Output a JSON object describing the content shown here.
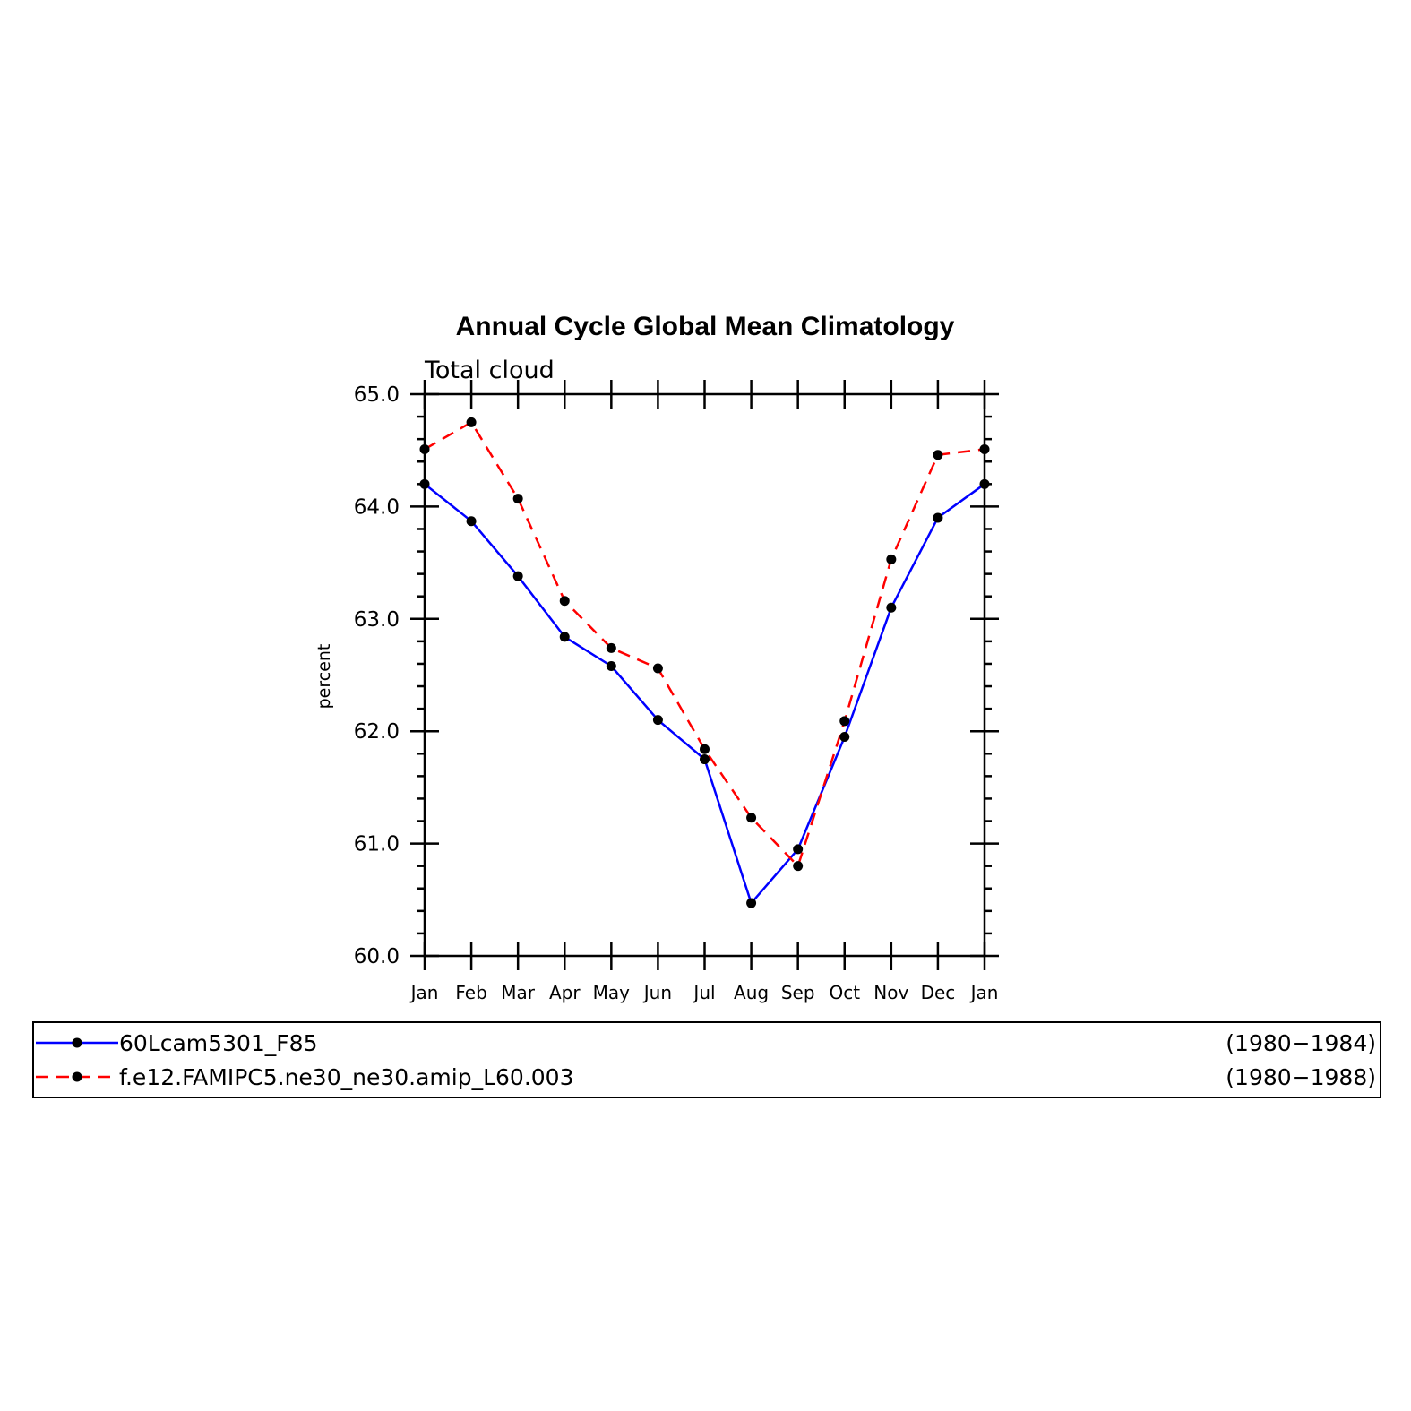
{
  "chart_data": {
    "type": "line",
    "title": "Annual Cycle Global Mean Climatology",
    "subtitle": "Total cloud",
    "ylabel": "percent",
    "xlabel": "",
    "categories": [
      "Jan",
      "Feb",
      "Mar",
      "Apr",
      "May",
      "Jun",
      "Jul",
      "Aug",
      "Sep",
      "Oct",
      "Nov",
      "Dec",
      "Jan"
    ],
    "ylim": [
      60.0,
      65.0
    ],
    "yticks": [
      60.0,
      61.0,
      62.0,
      63.0,
      64.0,
      65.0
    ],
    "ytick_labels": [
      "60.0",
      "61.0",
      "62.0",
      "63.0",
      "64.0",
      "65.0"
    ],
    "grid": false,
    "legend_position": "bottom",
    "series": [
      {
        "name": "60Lcam5301_F85",
        "period": "(1980−1984)",
        "color": "#0000ff",
        "dash": "solid",
        "marker_color": "#000000",
        "values": [
          64.2,
          63.87,
          63.38,
          62.84,
          62.58,
          62.1,
          61.75,
          60.47,
          60.95,
          61.95,
          63.1,
          63.9,
          64.2
        ]
      },
      {
        "name": "f.e12.FAMIPC5.ne30_ne30.amip_L60.003",
        "period": "(1980−1988)",
        "color": "#ff0000",
        "dash": "dashed",
        "marker_color": "#000000",
        "values": [
          64.51,
          64.75,
          64.07,
          63.16,
          62.74,
          62.56,
          61.84,
          61.23,
          60.8,
          62.09,
          63.53,
          64.46,
          64.51
        ]
      }
    ]
  }
}
